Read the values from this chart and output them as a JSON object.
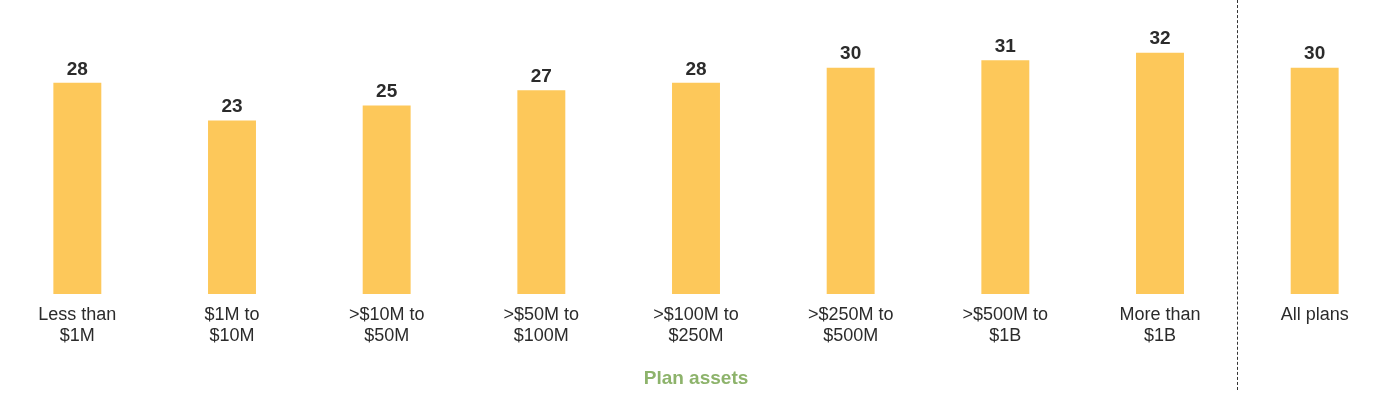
{
  "chart_data": {
    "type": "bar",
    "xlabel": "Plan assets",
    "categories": [
      "Less than $1M",
      "$1M to $10M",
      ">$10M to $50M",
      ">$50M to $100M",
      ">$100M to $250M",
      ">$250M to $500M",
      ">$500M to $1B",
      "More than $1B",
      "All plans"
    ],
    "values": [
      28,
      23,
      25,
      27,
      28,
      30,
      31,
      32,
      30
    ],
    "color": "#fdc85a",
    "data_labels": true,
    "grid": false,
    "legend": false
  }
}
